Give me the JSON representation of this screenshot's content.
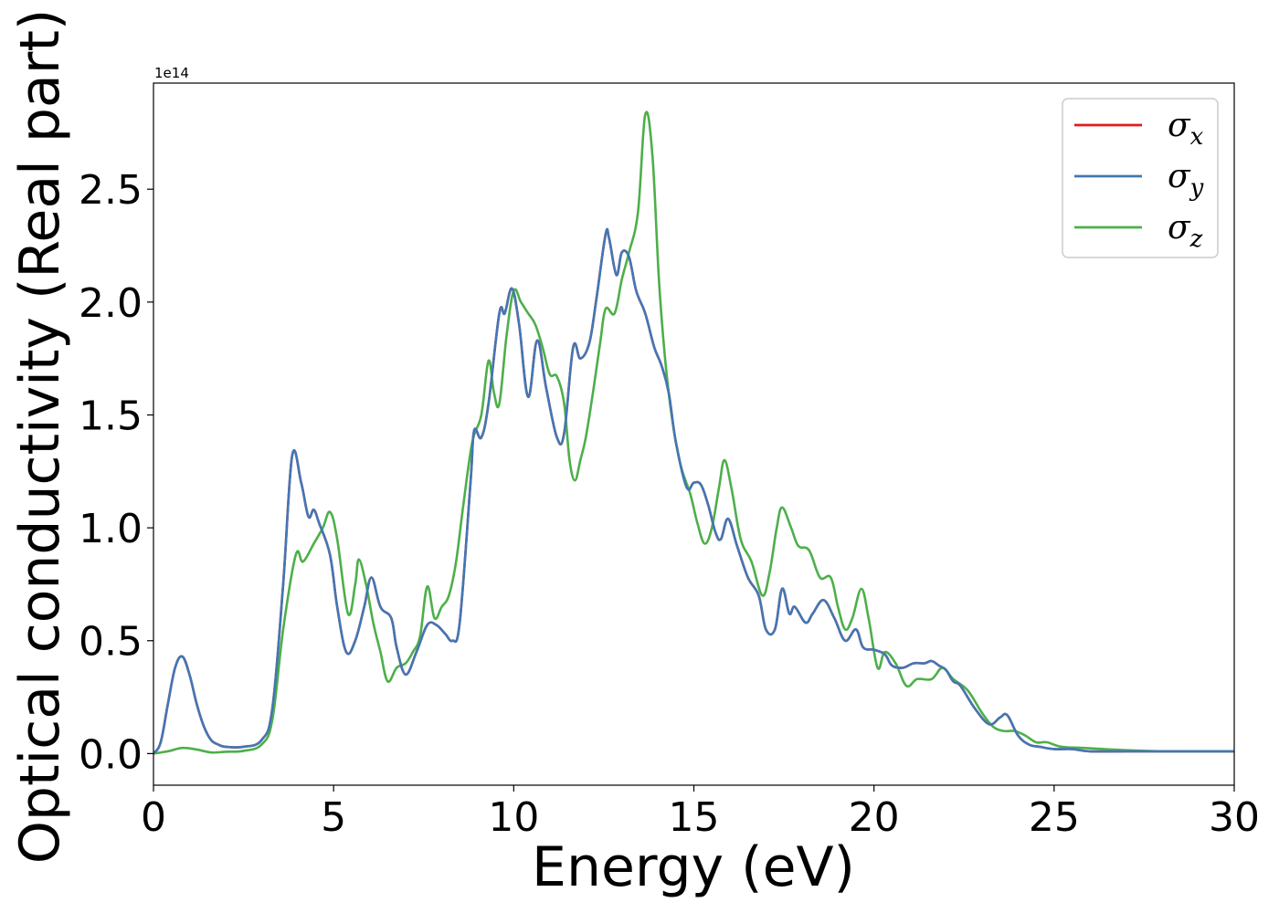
{
  "chart_data": {
    "type": "line",
    "xlabel": "Energy (eV)",
    "ylabel": "Optical conductivity (Real part)",
    "y_offset_label": "1e14",
    "y_scale": 100000000000000.0,
    "xlim": [
      0,
      30
    ],
    "ylim": [
      -0.14,
      2.97
    ],
    "xticks": [
      0,
      5,
      10,
      15,
      20,
      25,
      30
    ],
    "xtick_labels": [
      "0",
      "5",
      "10",
      "15",
      "20",
      "25",
      "30"
    ],
    "yticks": [
      0.0,
      0.5,
      1.0,
      1.5,
      2.0,
      2.5
    ],
    "ytick_labels": [
      "0.0",
      "0.5",
      "1.0",
      "1.5",
      "2.0",
      "2.5"
    ],
    "grid": false,
    "legend_position": "top-right",
    "series": [
      {
        "name": "σ_x",
        "legend_base": "σ",
        "legend_sub": "x",
        "color": "#e41a1c",
        "hidden_under": "σ_y",
        "x": [
          0,
          0.2,
          0.4,
          0.6,
          0.8,
          1.0,
          1.2,
          1.4,
          1.6,
          1.8,
          2.0,
          2.5,
          3.0,
          3.3,
          3.6,
          3.85,
          4.1,
          4.3,
          4.45,
          4.6,
          4.9,
          5.1,
          5.35,
          5.6,
          5.85,
          6.05,
          6.3,
          6.6,
          6.75,
          7.0,
          7.3,
          7.6,
          7.85,
          8.1,
          8.3,
          8.5,
          8.8,
          8.9,
          9.1,
          9.3,
          9.6,
          9.75,
          9.95,
          10.15,
          10.4,
          10.65,
          10.9,
          11.2,
          11.4,
          11.65,
          11.85,
          12.1,
          12.3,
          12.55,
          12.65,
          12.85,
          13.0,
          13.2,
          13.4,
          13.65,
          13.9,
          14.1,
          14.3,
          14.5,
          14.8,
          15.0,
          15.2,
          15.4,
          15.6,
          15.75,
          15.95,
          16.2,
          16.5,
          16.8,
          17.0,
          17.25,
          17.45,
          17.65,
          17.8,
          18.1,
          18.3,
          18.6,
          18.9,
          19.2,
          19.5,
          19.7,
          20.0,
          20.3,
          20.5,
          20.8,
          21.1,
          21.4,
          21.6,
          21.8,
          22.0,
          22.2,
          22.4,
          22.8,
          23.2,
          23.5,
          23.7,
          24.0,
          24.3,
          24.6,
          25.0,
          25.5,
          26.0,
          27.0,
          28.0,
          29.0,
          30.0
        ],
        "y": [
          0.0,
          0.05,
          0.22,
          0.38,
          0.43,
          0.35,
          0.22,
          0.12,
          0.06,
          0.04,
          0.03,
          0.03,
          0.06,
          0.2,
          0.75,
          1.32,
          1.2,
          1.05,
          1.08,
          1.02,
          0.88,
          0.65,
          0.45,
          0.5,
          0.65,
          0.78,
          0.65,
          0.6,
          0.47,
          0.35,
          0.45,
          0.57,
          0.57,
          0.53,
          0.5,
          0.58,
          1.2,
          1.43,
          1.4,
          1.55,
          1.95,
          1.95,
          2.06,
          1.9,
          1.58,
          1.83,
          1.62,
          1.4,
          1.42,
          1.8,
          1.75,
          1.82,
          2.02,
          2.3,
          2.28,
          2.12,
          2.22,
          2.2,
          2.05,
          1.95,
          1.8,
          1.72,
          1.6,
          1.38,
          1.18,
          1.2,
          1.19,
          1.1,
          0.98,
          0.95,
          1.04,
          0.92,
          0.78,
          0.7,
          0.55,
          0.55,
          0.73,
          0.62,
          0.65,
          0.58,
          0.62,
          0.68,
          0.6,
          0.5,
          0.55,
          0.47,
          0.46,
          0.44,
          0.39,
          0.38,
          0.4,
          0.4,
          0.41,
          0.39,
          0.37,
          0.32,
          0.3,
          0.2,
          0.13,
          0.16,
          0.17,
          0.08,
          0.04,
          0.03,
          0.02,
          0.02,
          0.01,
          0.01,
          0.01,
          0.01,
          0.01
        ]
      },
      {
        "name": "σ_y",
        "legend_base": "σ",
        "legend_sub": "y",
        "color": "#4277b4",
        "x": [
          0,
          0.2,
          0.4,
          0.6,
          0.8,
          1.0,
          1.2,
          1.4,
          1.6,
          1.8,
          2.0,
          2.5,
          3.0,
          3.3,
          3.6,
          3.85,
          4.1,
          4.3,
          4.45,
          4.6,
          4.9,
          5.1,
          5.35,
          5.6,
          5.85,
          6.05,
          6.3,
          6.6,
          6.75,
          7.0,
          7.3,
          7.6,
          7.85,
          8.1,
          8.3,
          8.5,
          8.8,
          8.9,
          9.1,
          9.3,
          9.6,
          9.75,
          9.95,
          10.15,
          10.4,
          10.65,
          10.9,
          11.2,
          11.4,
          11.65,
          11.85,
          12.1,
          12.3,
          12.55,
          12.65,
          12.85,
          13.0,
          13.2,
          13.4,
          13.65,
          13.9,
          14.1,
          14.3,
          14.5,
          14.8,
          15.0,
          15.2,
          15.4,
          15.6,
          15.75,
          15.95,
          16.2,
          16.5,
          16.8,
          17.0,
          17.25,
          17.45,
          17.65,
          17.8,
          18.1,
          18.3,
          18.6,
          18.9,
          19.2,
          19.5,
          19.7,
          20.0,
          20.3,
          20.5,
          20.8,
          21.1,
          21.4,
          21.6,
          21.8,
          22.0,
          22.2,
          22.4,
          22.8,
          23.2,
          23.5,
          23.7,
          24.0,
          24.3,
          24.6,
          25.0,
          25.5,
          26.0,
          27.0,
          28.0,
          29.0,
          30.0
        ],
        "y": [
          0.0,
          0.05,
          0.22,
          0.38,
          0.43,
          0.35,
          0.22,
          0.12,
          0.06,
          0.04,
          0.03,
          0.03,
          0.06,
          0.2,
          0.75,
          1.32,
          1.2,
          1.05,
          1.08,
          1.02,
          0.88,
          0.65,
          0.45,
          0.5,
          0.65,
          0.78,
          0.65,
          0.6,
          0.47,
          0.35,
          0.45,
          0.57,
          0.57,
          0.53,
          0.5,
          0.58,
          1.2,
          1.43,
          1.4,
          1.55,
          1.95,
          1.95,
          2.06,
          1.9,
          1.58,
          1.83,
          1.62,
          1.4,
          1.42,
          1.8,
          1.75,
          1.82,
          2.02,
          2.3,
          2.28,
          2.12,
          2.22,
          2.2,
          2.05,
          1.95,
          1.8,
          1.72,
          1.6,
          1.38,
          1.18,
          1.2,
          1.19,
          1.1,
          0.98,
          0.95,
          1.04,
          0.92,
          0.78,
          0.7,
          0.55,
          0.55,
          0.73,
          0.62,
          0.65,
          0.58,
          0.62,
          0.68,
          0.6,
          0.5,
          0.55,
          0.47,
          0.46,
          0.44,
          0.39,
          0.38,
          0.4,
          0.4,
          0.41,
          0.39,
          0.37,
          0.32,
          0.3,
          0.2,
          0.13,
          0.16,
          0.17,
          0.08,
          0.04,
          0.03,
          0.02,
          0.02,
          0.01,
          0.01,
          0.01,
          0.01,
          0.01
        ]
      },
      {
        "name": "σ_z",
        "legend_base": "σ",
        "legend_sub": "z",
        "color": "#4daf4a",
        "x": [
          0,
          0.4,
          0.8,
          1.2,
          1.6,
          2.0,
          2.5,
          3.0,
          3.3,
          3.6,
          3.95,
          4.15,
          4.45,
          4.7,
          4.9,
          5.1,
          5.4,
          5.6,
          5.7,
          5.9,
          6.1,
          6.3,
          6.5,
          6.75,
          7.0,
          7.2,
          7.4,
          7.6,
          7.8,
          8.0,
          8.2,
          8.4,
          8.6,
          8.85,
          9.1,
          9.3,
          9.45,
          9.6,
          9.8,
          10.0,
          10.2,
          10.4,
          10.6,
          10.8,
          11.0,
          11.2,
          11.4,
          11.55,
          11.7,
          11.85,
          12.0,
          12.2,
          12.4,
          12.55,
          12.8,
          13.0,
          13.2,
          13.45,
          13.65,
          13.85,
          14.05,
          14.3,
          14.6,
          14.9,
          15.1,
          15.3,
          15.5,
          15.7,
          15.85,
          16.05,
          16.3,
          16.6,
          16.9,
          17.1,
          17.3,
          17.45,
          17.7,
          17.9,
          18.2,
          18.5,
          18.8,
          19.0,
          19.2,
          19.4,
          19.65,
          19.85,
          20.1,
          20.3,
          20.6,
          20.9,
          21.2,
          21.6,
          21.9,
          22.2,
          22.6,
          23.0,
          23.3,
          23.6,
          23.9,
          24.2,
          24.5,
          24.8,
          25.2,
          25.8,
          27.0,
          28.0,
          29.0,
          30.0
        ],
        "y": [
          0.0,
          0.01,
          0.025,
          0.018,
          0.005,
          0.008,
          0.012,
          0.04,
          0.15,
          0.55,
          0.88,
          0.85,
          0.93,
          1.0,
          1.07,
          0.95,
          0.62,
          0.75,
          0.86,
          0.75,
          0.58,
          0.45,
          0.32,
          0.38,
          0.4,
          0.45,
          0.52,
          0.74,
          0.6,
          0.65,
          0.7,
          0.85,
          1.1,
          1.38,
          1.5,
          1.74,
          1.6,
          1.55,
          1.85,
          2.05,
          2.0,
          1.95,
          1.9,
          1.8,
          1.68,
          1.67,
          1.55,
          1.3,
          1.21,
          1.3,
          1.4,
          1.6,
          1.82,
          1.97,
          1.95,
          2.1,
          2.22,
          2.4,
          2.83,
          2.65,
          2.05,
          1.6,
          1.3,
          1.15,
          1.02,
          0.93,
          1.0,
          1.18,
          1.3,
          1.17,
          0.95,
          0.85,
          0.7,
          0.8,
          1.0,
          1.09,
          1.0,
          0.92,
          0.9,
          0.78,
          0.78,
          0.65,
          0.55,
          0.6,
          0.73,
          0.6,
          0.38,
          0.45,
          0.4,
          0.3,
          0.33,
          0.33,
          0.38,
          0.33,
          0.28,
          0.18,
          0.12,
          0.1,
          0.1,
          0.08,
          0.05,
          0.05,
          0.03,
          0.025,
          0.015,
          0.01,
          0.01,
          0.01
        ]
      }
    ]
  }
}
